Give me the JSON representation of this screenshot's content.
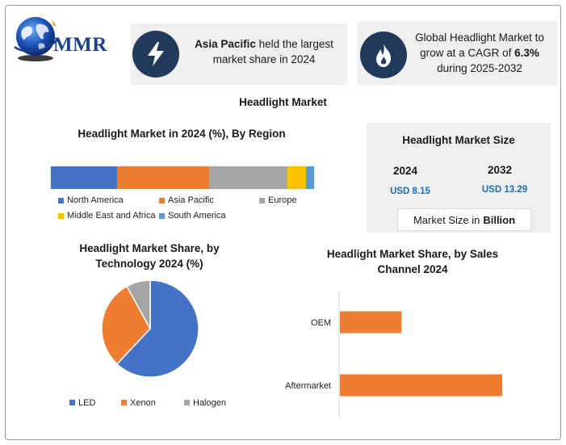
{
  "logo": {
    "text": "MMR"
  },
  "cards": {
    "region": {
      "bold": "Asia Pacific",
      "line1_rest": " held the largest",
      "line2": "market share in 2024"
    },
    "cagr": {
      "line1": "Global Headlight Market to",
      "line2_pre": "grow at a CAGR of ",
      "line2_bold": "6.3%",
      "line3": "during 2025-2032"
    }
  },
  "title": "Headlight Market",
  "market_size": {
    "title": "Headlight Market Size",
    "year1": "2024",
    "value1": "USD 8.15",
    "year2": "2032",
    "value2": "USD 13.29",
    "unit_pre": "Market Size in",
    "unit_bold": "Billion"
  },
  "colors": {
    "blue": "#4472c4",
    "orange": "#ed7d31",
    "gray": "#a5a5a5",
    "yellow": "#ffc000",
    "lightblue": "#5b9bd5",
    "icon_bg": "#213a5c",
    "value_blue": "#1a6fb0"
  },
  "chart_data": [
    {
      "type": "bar",
      "orientation": "stacked-horizontal",
      "title": "Headlight Market in 2024 (%), By Region",
      "categories": [
        "2024"
      ],
      "series": [
        {
          "name": "North America",
          "values": [
            25
          ],
          "color": "#4472c4"
        },
        {
          "name": "Asia Pacific",
          "values": [
            35
          ],
          "color": "#ed7d31"
        },
        {
          "name": "Europe",
          "values": [
            30
          ],
          "color": "#a5a5a5"
        },
        {
          "name": "Middle East and Africa",
          "values": [
            7
          ],
          "color": "#ffc000"
        },
        {
          "name": "South America",
          "values": [
            3
          ],
          "color": "#5b9bd5"
        }
      ],
      "legend": "bottom"
    },
    {
      "type": "pie",
      "title_line1": "Headlight Market Share, by",
      "title_line2": "Technology 2024 (%)",
      "labels": [
        "LED",
        "Xenon",
        "Halogen"
      ],
      "values": [
        62,
        30,
        8
      ],
      "colors": [
        "#4472c4",
        "#ed7d31",
        "#a5a5a5"
      ],
      "legend": "bottom"
    },
    {
      "type": "bar",
      "orientation": "horizontal",
      "title_line1": "Headlight Market Share, by Sales",
      "title_line2": "Channel 2024",
      "categories": [
        "OEM",
        "Aftermarket"
      ],
      "values": [
        38,
        100
      ],
      "color": "#ed7d31",
      "xlim": [
        0,
        100
      ]
    }
  ]
}
